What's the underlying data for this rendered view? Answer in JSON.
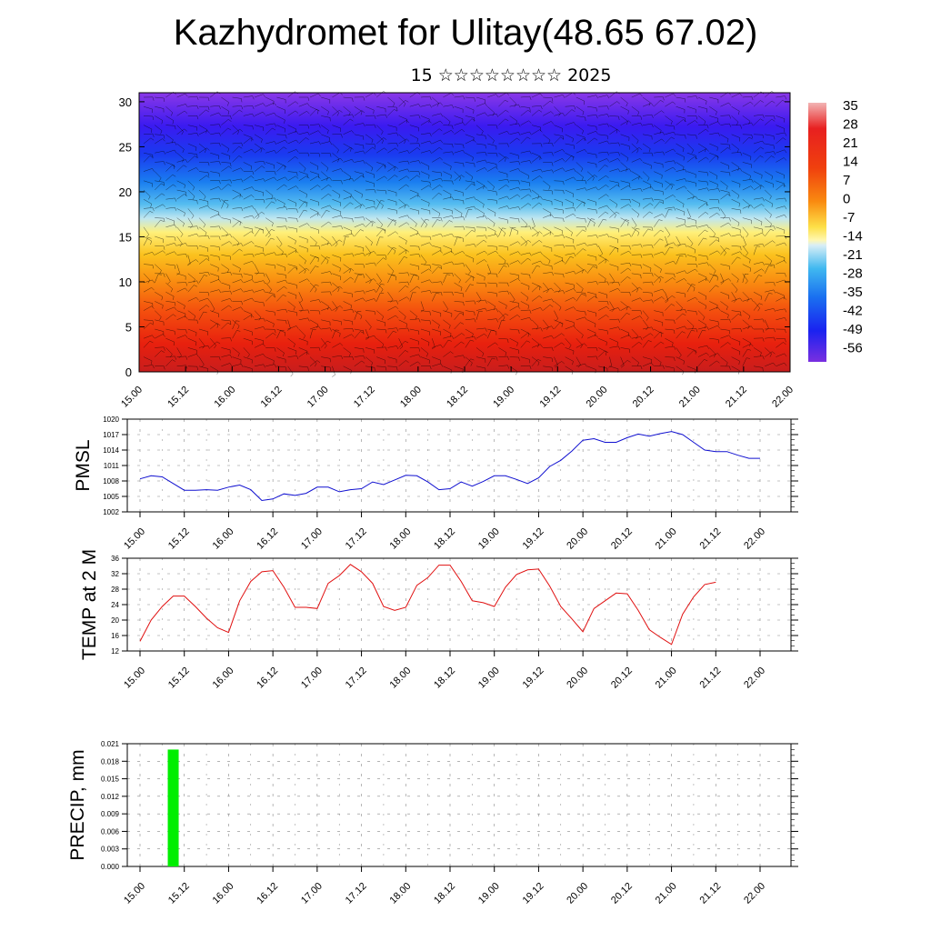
{
  "title": "Kazhydromet for Ulitay(48.65 67.02)",
  "subtitle": "15 ☆☆☆☆☆☆☆☆ 2025",
  "colors": {
    "pmsl_line": "#1010d0",
    "temp_line": "#e01010",
    "precip_bar": "#00ee00"
  },
  "time_ticks": [
    "15.00",
    "15.12",
    "16.00",
    "16.12",
    "17.00",
    "17.12",
    "18.00",
    "18.12",
    "19.00",
    "19.12",
    "20.00",
    "20.12",
    "21.00",
    "21.12",
    "22.00"
  ],
  "chart_data": [
    {
      "type": "heatmap",
      "name": "cross-section",
      "description_type": "temperature vs height with wind barbs",
      "y_ticks": [
        "0",
        "5",
        "10",
        "15",
        "20",
        "25",
        "30"
      ],
      "ylim": [
        0,
        31
      ],
      "colorbar_labels": [
        "35",
        "28",
        "21",
        "14",
        "7",
        "0",
        "-7",
        "-14",
        "-21",
        "-28",
        "-35",
        "-42",
        "-49",
        "-56"
      ],
      "height_levels_km": [
        0,
        5,
        10,
        15,
        17,
        20,
        25,
        30
      ],
      "temperature_c": [
        32,
        28,
        10,
        -10,
        -25,
        -35,
        -56,
        -50
      ]
    },
    {
      "type": "line",
      "ylabel": "PMSL",
      "y_ticks": [
        "1002",
        "1005",
        "1008",
        "1011",
        "1014",
        "1017",
        "1020"
      ],
      "ylim": [
        1002,
        1020
      ],
      "x": [
        "15.00",
        "15.03",
        "15.06",
        "15.09",
        "15.12",
        "15.15",
        "15.18",
        "15.21",
        "16.00",
        "16.03",
        "16.06",
        "16.09",
        "16.12",
        "16.15",
        "16.18",
        "16.21",
        "17.00",
        "17.03",
        "17.06",
        "17.09",
        "17.12",
        "17.15",
        "17.18",
        "17.21",
        "18.00",
        "18.03",
        "18.06",
        "18.09",
        "18.12",
        "18.15",
        "18.18",
        "18.21",
        "19.00",
        "19.03",
        "19.06",
        "19.09",
        "19.12",
        "19.15",
        "19.18",
        "19.21",
        "20.00",
        "20.03",
        "20.06",
        "20.09",
        "20.12",
        "20.15",
        "20.18",
        "20.21",
        "21.00",
        "21.03",
        "21.06",
        "21.09",
        "21.12",
        "21.15",
        "21.18",
        "21.21",
        "22.00"
      ],
      "series": [
        {
          "values": [
            1008.4,
            1009.0,
            1008.8,
            1007.5,
            1006.2,
            1006.2,
            1006.3,
            1006.2,
            1006.8,
            1007.2,
            1006.3,
            1004.2,
            1004.5,
            1005.5,
            1005.2,
            1005.6,
            1006.8,
            1006.8,
            1005.9,
            1006.3,
            1006.5,
            1007.8,
            1007.3,
            1008.2,
            1009.1,
            1009.0,
            1007.8,
            1006.3,
            1006.5,
            1007.8,
            1007.0,
            1007.9,
            1009.0,
            1009.0,
            1008.3,
            1007.5,
            1008.6,
            1010.8,
            1012.0,
            1013.8,
            1015.9,
            1016.2,
            1015.5,
            1015.5,
            1016.4,
            1017.1,
            1016.7,
            1017.2,
            1017.6,
            1017.0,
            1015.5,
            1014.0,
            1013.7,
            1013.7,
            1013.0,
            1012.4,
            1012.4
          ]
        }
      ]
    },
    {
      "type": "line",
      "ylabel": "TEMP at 2 M",
      "y_ticks": [
        "12",
        "16",
        "20",
        "24",
        "28",
        "32",
        "36"
      ],
      "ylim": [
        12,
        36
      ],
      "x": [
        "15.00",
        "15.03",
        "15.06",
        "15.09",
        "15.12",
        "15.15",
        "15.18",
        "15.21",
        "16.00",
        "16.03",
        "16.06",
        "16.09",
        "16.12",
        "16.15",
        "16.18",
        "16.21",
        "17.00",
        "17.03",
        "17.06",
        "17.09",
        "17.12",
        "17.15",
        "17.18",
        "17.21",
        "18.00",
        "18.03",
        "18.06",
        "18.09",
        "18.12",
        "18.15",
        "18.18",
        "18.21",
        "19.00",
        "19.03",
        "19.06",
        "19.09",
        "19.12",
        "19.15",
        "19.18",
        "19.21",
        "20.00",
        "20.03",
        "20.06",
        "20.09",
        "20.12",
        "20.15",
        "20.18",
        "20.21",
        "21.00",
        "21.03",
        "21.06",
        "21.09",
        "21.12"
      ],
      "series": [
        {
          "values": [
            14.5,
            20.0,
            23.5,
            26.2,
            26.2,
            23.5,
            20.5,
            18.0,
            16.8,
            25.0,
            30.0,
            32.5,
            32.8,
            28.5,
            23.3,
            23.3,
            23.0,
            29.5,
            31.5,
            34.4,
            32.5,
            29.5,
            23.5,
            22.5,
            23.3,
            29.0,
            31.0,
            34.2,
            34.2,
            30.0,
            25.0,
            24.5,
            23.5,
            28.5,
            31.8,
            33.0,
            33.2,
            28.8,
            23.5,
            20.3,
            17.0,
            23.0,
            25.0,
            27.0,
            26.8,
            22.5,
            17.5,
            15.5,
            13.7,
            21.5,
            26.0,
            29.2,
            29.8
          ]
        }
      ]
    },
    {
      "type": "bar",
      "ylabel": "PRECIP, mm",
      "y_ticks": [
        "0.000",
        "0.003",
        "0.006",
        "0.009",
        "0.012",
        "0.015",
        "0.018",
        "0.021"
      ],
      "ylim": [
        0,
        0.021
      ],
      "categories": [
        "15.09"
      ],
      "values": [
        0.02
      ]
    }
  ]
}
